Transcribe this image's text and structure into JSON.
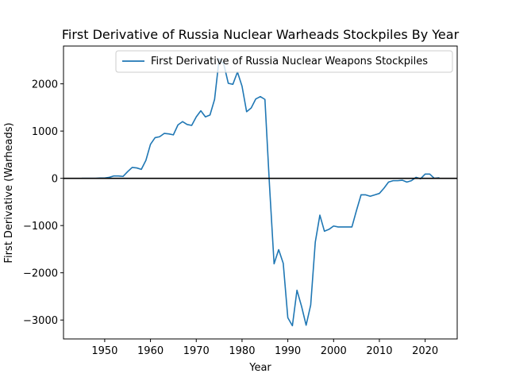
{
  "chart_data": {
    "type": "line",
    "title": "First Derivative of Russia Nuclear Warheads Stockpiles By Year",
    "xlabel": "Year",
    "ylabel": "First Derivative (Warheads)",
    "xlim": [
      1941,
      2027
    ],
    "ylim": [
      -3400,
      2800
    ],
    "x_ticks": [
      1950,
      1960,
      1970,
      1980,
      1990,
      2000,
      2010,
      2020
    ],
    "x_tick_labels": [
      "1950",
      "1960",
      "1970",
      "1980",
      "1990",
      "2000",
      "2010",
      "2020"
    ],
    "y_ticks": [
      -3000,
      -2000,
      -1000,
      0,
      1000,
      2000
    ],
    "y_tick_labels": [
      "−3000",
      "−2000",
      "−1000",
      "0",
      "1000",
      "2000"
    ],
    "grid": false,
    "legend_position": "top-right",
    "reference_line": {
      "y": 0,
      "color": "#000000"
    },
    "series": [
      {
        "name": "First Derivative of Russia Nuclear Weapons Stockpiles",
        "color": "#1f77b4",
        "x": [
          1945,
          1946,
          1947,
          1948,
          1949,
          1950,
          1951,
          1952,
          1953,
          1954,
          1955,
          1956,
          1957,
          1958,
          1959,
          1960,
          1961,
          1962,
          1963,
          1964,
          1965,
          1966,
          1967,
          1968,
          1969,
          1970,
          1971,
          1972,
          1973,
          1974,
          1975,
          1976,
          1977,
          1978,
          1979,
          1980,
          1981,
          1982,
          1983,
          1984,
          1985,
          1986,
          1987,
          1988,
          1989,
          1990,
          1991,
          1992,
          1993,
          1994,
          1995,
          1996,
          1997,
          1998,
          1999,
          2000,
          2001,
          2002,
          2003,
          2004,
          2005,
          2006,
          2007,
          2008,
          2009,
          2010,
          2011,
          2012,
          2013,
          2014,
          2015,
          2016,
          2017,
          2018,
          2019,
          2020,
          2021,
          2022,
          2023
        ],
        "y": [
          0,
          0,
          0,
          0,
          5,
          5,
          20,
          50,
          50,
          40,
          140,
          230,
          220,
          190,
          380,
          720,
          860,
          880,
          950,
          940,
          920,
          1130,
          1200,
          1140,
          1120,
          1300,
          1430,
          1300,
          1340,
          1670,
          2530,
          2420,
          2010,
          1990,
          2250,
          1950,
          1410,
          1490,
          1680,
          1730,
          1670,
          -150,
          -1810,
          -1510,
          -1800,
          -2950,
          -3120,
          -2370,
          -2710,
          -3110,
          -2680,
          -1350,
          -780,
          -1120,
          -1080,
          -1010,
          -1030,
          -1030,
          -1030,
          -1030,
          -680,
          -350,
          -350,
          -380,
          -350,
          -320,
          -210,
          -80,
          -50,
          -50,
          -40,
          -80,
          -50,
          20,
          -10,
          90,
          90,
          0,
          10
        ]
      }
    ]
  }
}
